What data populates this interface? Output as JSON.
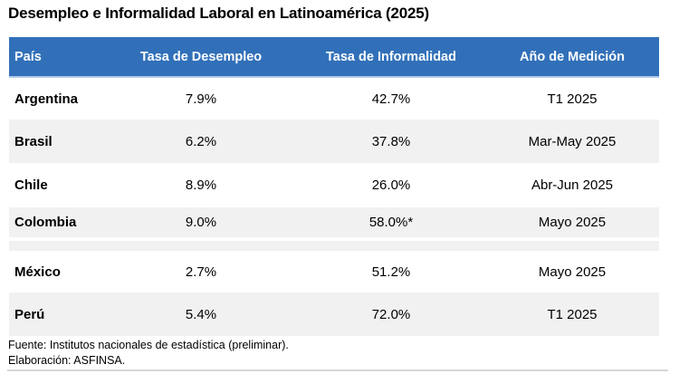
{
  "title": "Desempleo e Informalidad Laboral en Latinoamérica (2025)",
  "table": {
    "columns": [
      "País",
      "Tasa de Desempleo",
      "Tasa de Informalidad",
      "Año de Medición"
    ],
    "rows": [
      {
        "pais": "Argentina",
        "desempleo": "7.9%",
        "informalidad": "42.7%",
        "medicion": "T1 2025"
      },
      {
        "pais": "Brasil",
        "desempleo": "6.2%",
        "informalidad": "37.8%",
        "medicion": "Mar-May 2025"
      },
      {
        "pais": "Chile",
        "desempleo": "8.9%",
        "informalidad": "26.0%",
        "medicion": "Abr-Jun 2025"
      },
      {
        "pais": "Colombia",
        "desempleo": "9.0%",
        "informalidad": "58.0%*",
        "medicion": "Mayo 2025"
      },
      {
        "pais": "México",
        "desempleo": "2.7%",
        "informalidad": "51.2%",
        "medicion": "Mayo 2025"
      },
      {
        "pais": "Perú",
        "desempleo": "5.4%",
        "informalidad": "72.0%",
        "medicion": "T1 2025"
      }
    ]
  },
  "footer": {
    "source": "Fuente: Institutos nacionales de estadística (preliminar).",
    "elaboration": "Elaboración: ASFINSA."
  },
  "colors": {
    "header_bg": "#3170B9",
    "header_text": "#FFFFFF",
    "band_bg": "#F1F1F1",
    "row_bg": "#FFFFFF",
    "text": "#000000",
    "header_underline": "#AFCBEA",
    "bottom_rule": "#D8D8D8"
  },
  "chart_data": {
    "type": "table",
    "title": "Desempleo e Informalidad Laboral en Latinoamérica (2025)",
    "columns": [
      "País",
      "Tasa de Desempleo",
      "Tasa de Informalidad",
      "Año de Medición"
    ],
    "rows": [
      [
        "Argentina",
        "7.9%",
        "42.7%",
        "T1 2025"
      ],
      [
        "Brasil",
        "6.2%",
        "37.8%",
        "Mar-May 2025"
      ],
      [
        "Chile",
        "8.9%",
        "26.0%",
        "Abr-Jun 2025"
      ],
      [
        "Colombia",
        "9.0%",
        "58.0%*",
        "Mayo 2025"
      ],
      [
        "México",
        "2.7%",
        "51.2%",
        "Mayo 2025"
      ],
      [
        "Perú",
        "5.4%",
        "72.0%",
        "T1 2025"
      ]
    ],
    "unemployment_values_pct": [
      7.9,
      6.2,
      8.9,
      9.0,
      2.7,
      5.4
    ],
    "informality_values_pct": [
      42.7,
      37.8,
      26.0,
      58.0,
      51.2,
      72.0
    ],
    "notes": [
      "Fuente: Institutos nacionales de estadística (preliminar).",
      "Elaboración: ASFINSA."
    ],
    "layout": {
      "header_style": "blue-filled-white-bold",
      "banding": "alternate-rows-light-gray",
      "grid": "off"
    }
  }
}
